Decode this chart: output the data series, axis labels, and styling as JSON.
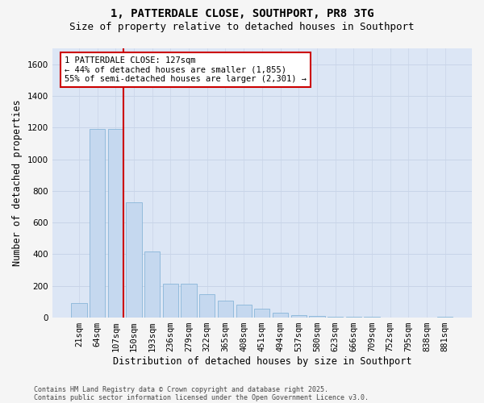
{
  "title": "1, PATTERDALE CLOSE, SOUTHPORT, PR8 3TG",
  "subtitle": "Size of property relative to detached houses in Southport",
  "xlabel": "Distribution of detached houses by size in Southport",
  "ylabel": "Number of detached properties",
  "footnote1": "Contains HM Land Registry data © Crown copyright and database right 2025.",
  "footnote2": "Contains public sector information licensed under the Open Government Licence v3.0.",
  "categories": [
    "21sqm",
    "64sqm",
    "107sqm",
    "150sqm",
    "193sqm",
    "236sqm",
    "279sqm",
    "322sqm",
    "365sqm",
    "408sqm",
    "451sqm",
    "494sqm",
    "537sqm",
    "580sqm",
    "623sqm",
    "666sqm",
    "709sqm",
    "752sqm",
    "795sqm",
    "838sqm",
    "881sqm"
  ],
  "values": [
    90,
    1190,
    1190,
    730,
    420,
    215,
    215,
    150,
    105,
    80,
    55,
    30,
    18,
    12,
    8,
    5,
    3,
    2,
    1,
    0,
    3
  ],
  "bar_color": "#c5d8ef",
  "bar_edge_color": "#7aaed4",
  "property_line_index": 2,
  "annotation_text": "1 PATTERDALE CLOSE: 127sqm\n← 44% of detached houses are smaller (1,855)\n55% of semi-detached houses are larger (2,301) →",
  "annotation_box_facecolor": "#ffffff",
  "annotation_box_edgecolor": "#cc0000",
  "vline_color": "#cc0000",
  "grid_color": "#c8d4e8",
  "plot_bg_color": "#dce6f5",
  "fig_bg_color": "#f5f5f5",
  "ylim": [
    0,
    1700
  ],
  "yticks": [
    0,
    200,
    400,
    600,
    800,
    1000,
    1200,
    1400,
    1600
  ],
  "title_fontsize": 10,
  "subtitle_fontsize": 9,
  "axis_label_fontsize": 8.5,
  "tick_fontsize": 7.5,
  "annotation_fontsize": 7.5,
  "footnote_fontsize": 6
}
